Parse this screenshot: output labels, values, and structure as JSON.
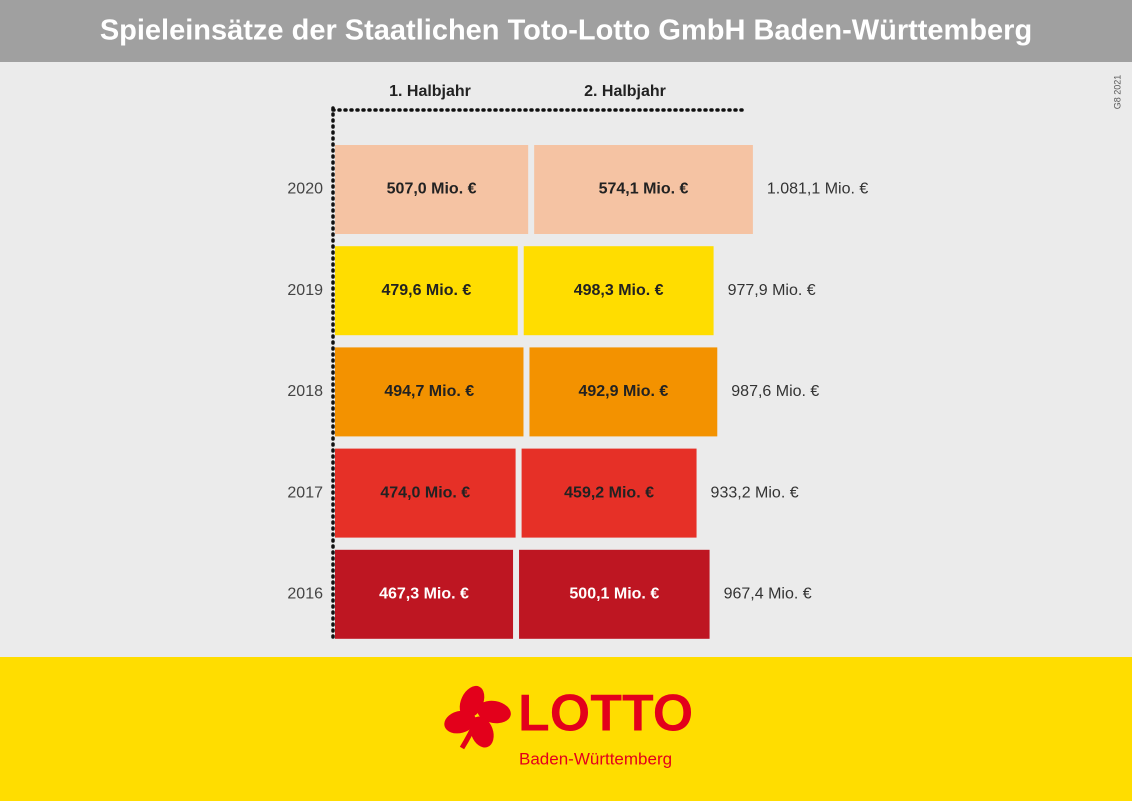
{
  "header": {
    "title": "Spieleinsätze der Staatlichen Toto-Lotto GmbH Baden-Württemberg"
  },
  "code": "G8 2021",
  "chart_data": {
    "type": "stacked-bar-horizontal",
    "categories": [
      "2020",
      "2019",
      "2018",
      "2017",
      "2016"
    ],
    "row_colors": [
      "#f5c3a3",
      "#ffdd00",
      "#f39200",
      "#e63027",
      "#be1622"
    ],
    "label_colors": [
      "#222222",
      "#222222",
      "#222222",
      "#222222",
      "#ffffff"
    ],
    "series": [
      {
        "name": "1. Halbjahr",
        "values": [
          507.0,
          479.6,
          494.7,
          474.0,
          467.3
        ],
        "value_labels": [
          "507,0 Mio. €",
          "479,6 Mio. €",
          "494,7 Mio. €",
          "474,0 Mio. €",
          "467,3 Mio. €"
        ]
      },
      {
        "name": "2. Halbjahr",
        "values": [
          574.1,
          498.3,
          492.9,
          459.2,
          500.1
        ],
        "value_labels": [
          "574,1 Mio. €",
          "498,3 Mio. €",
          "492,9 Mio. €",
          "459,2 Mio. €",
          "500,1 Mio. €"
        ]
      }
    ],
    "totals": {
      "values": [
        1081.1,
        977.9,
        987.6,
        933.2,
        967.4
      ],
      "value_labels": [
        "1.081,1 Mio. €",
        "977,9 Mio. €",
        "987,6 Mio. €",
        "933,2 Mio. €",
        "967,4 Mio. €"
      ]
    }
  },
  "footer": {
    "logo_text": "LOTTO",
    "logo_subtext": "Baden-Württemberg"
  }
}
